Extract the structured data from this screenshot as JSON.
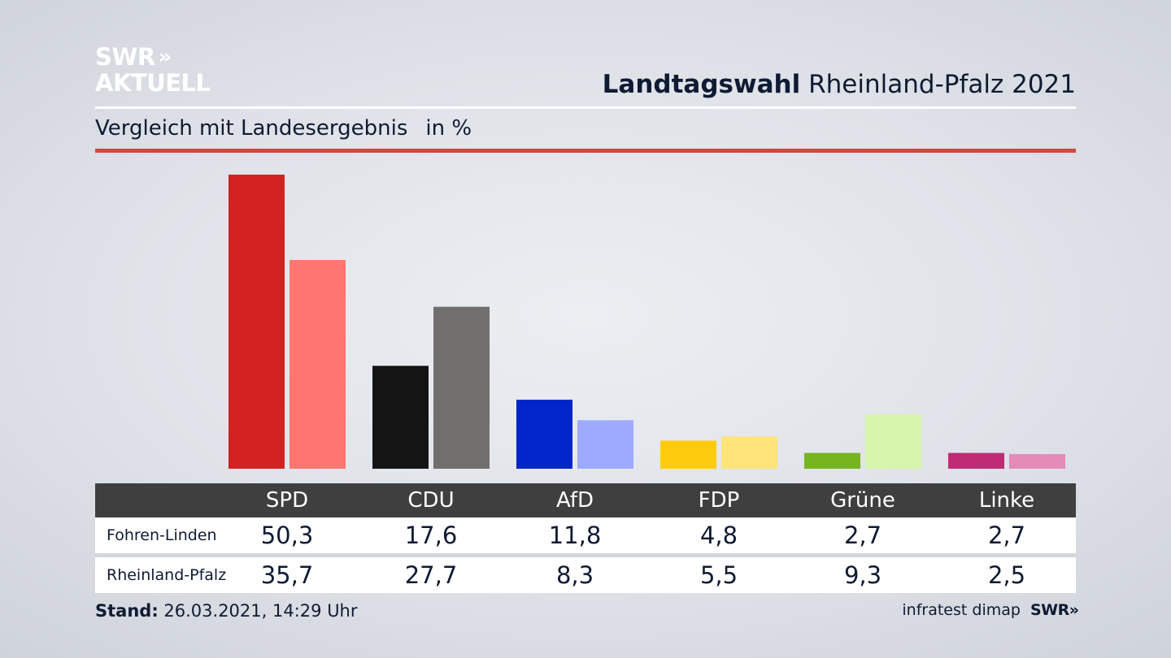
{
  "header": {
    "logo_line1": "SWR",
    "logo_arrows": "»",
    "logo_line2": "AKTUELL",
    "title_bold": "Landtagswahl",
    "title_rest": "Rheinland-Pfalz 2021",
    "subtitle": "Vergleich mit Landesergebnis",
    "unit": "in %"
  },
  "chart_data": {
    "type": "bar",
    "title": "Landtagswahl Rheinland-Pfalz 2021",
    "subtitle": "Vergleich mit Landesergebnis",
    "unit": "in %",
    "categories": [
      "SPD",
      "CDU",
      "AfD",
      "FDP",
      "Grüne",
      "Linke"
    ],
    "series": [
      {
        "name": "Fohren-Linden",
        "values": [
          50.3,
          17.6,
          11.8,
          4.8,
          2.7,
          2.7
        ],
        "labels": [
          "50,3",
          "17,6",
          "11,8",
          "4,8",
          "2,7",
          "2,7"
        ]
      },
      {
        "name": "Rheinland-Pfalz",
        "values": [
          35.7,
          27.7,
          8.3,
          5.5,
          9.3,
          2.5
        ],
        "labels": [
          "35,7",
          "27,7",
          "8,3",
          "5,5",
          "9,3",
          "2,5"
        ]
      }
    ],
    "colors": {
      "primary": [
        "#d42121",
        "#141414",
        "#0025c9",
        "#fecc0d",
        "#77b51e",
        "#be2c75"
      ],
      "secondary": [
        "#ff7570",
        "#716f6e",
        "#9eaaff",
        "#fee47a",
        "#d7f5ab",
        "#e38bb9"
      ]
    },
    "ylim": [
      0,
      50.3
    ],
    "grid": false,
    "legend": "table-below"
  },
  "footer": {
    "stand_label": "Stand:",
    "stand_value": "26.03.2021, 14:29 Uhr",
    "source": "infratest dimap",
    "source_logo": "SWR",
    "source_logo_arrows": "»"
  }
}
